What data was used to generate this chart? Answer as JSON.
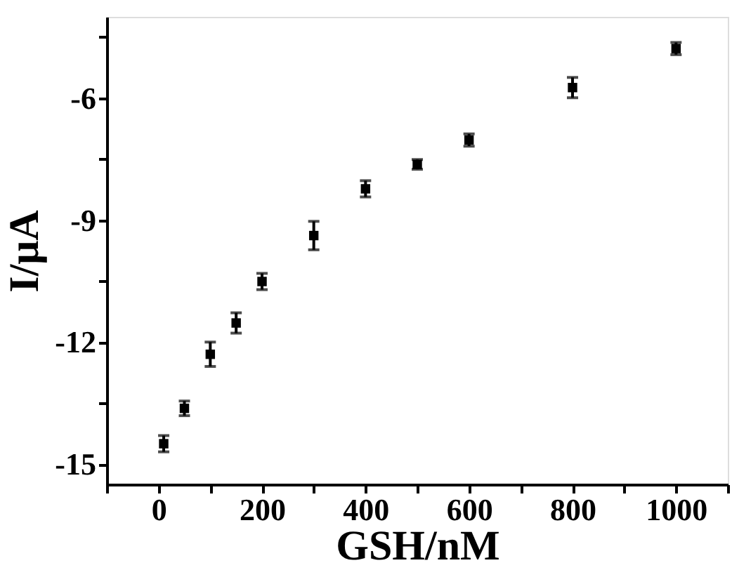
{
  "chart_data": {
    "type": "scatter",
    "xlabel": "GSH/nM",
    "ylabel": "I/μA",
    "x": [
      10,
      50,
      100,
      150,
      200,
      300,
      400,
      500,
      600,
      800,
      1000
    ],
    "values": [
      -14.5,
      -13.63,
      -12.3,
      -11.53,
      -10.51,
      -9.38,
      -8.23,
      -7.63,
      -7.03,
      -5.74,
      -4.78
    ],
    "errors": [
      0.2,
      0.18,
      0.3,
      0.25,
      0.2,
      0.35,
      0.2,
      0.12,
      0.15,
      0.25,
      0.15
    ],
    "color": "#000000",
    "marker": "square",
    "xlim": [
      -100,
      1100
    ],
    "ylim": [
      -15.5,
      -4
    ],
    "xticks": [
      {
        "value": -100,
        "label": null
      },
      0,
      {
        "value": 100,
        "label": null
      },
      200,
      {
        "value": 300,
        "label": null
      },
      400,
      {
        "value": 500,
        "label": null
      },
      600,
      {
        "value": 700,
        "label": null
      },
      800,
      {
        "value": 900,
        "label": null
      },
      1000,
      {
        "value": 1100,
        "label": null
      }
    ],
    "yticks": [
      -15,
      {
        "value": -13.5,
        "label": null
      },
      -12,
      {
        "value": -10.5,
        "label": null
      },
      -9,
      {
        "value": -7.5,
        "label": null
      },
      -6,
      {
        "value": -4.5,
        "label": null
      }
    ],
    "grid": false
  }
}
